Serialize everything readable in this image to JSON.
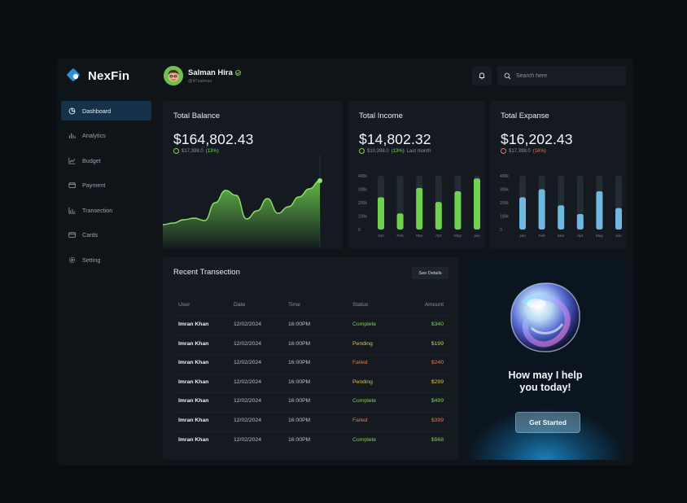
{
  "brand": {
    "name": "NexFin"
  },
  "sidebar": {
    "items": [
      {
        "label": "Dashboard",
        "icon": "pie-chart-icon",
        "active": true
      },
      {
        "label": "Analytics",
        "icon": "bar-chart-icon"
      },
      {
        "label": "Budget",
        "icon": "line-chart-icon"
      },
      {
        "label": "Payment",
        "icon": "wallet-icon"
      },
      {
        "label": "Transection",
        "icon": "transaction-chart-icon"
      },
      {
        "label": "Cards",
        "icon": "card-icon"
      },
      {
        "label": "Setting",
        "icon": "gear-icon"
      }
    ]
  },
  "header": {
    "user_name": "Salman Hira",
    "user_handle": "@47salman",
    "search_placeholder": "Search here"
  },
  "balance": {
    "title": "Total Balance",
    "amount": "$164,802.43",
    "change_value": "$17,398.0",
    "change_pct": "(13%)"
  },
  "income": {
    "title": "Total Income",
    "amount": "$14,802.32",
    "change_value": "$10,398.0",
    "change_pct": "(13%)",
    "change_suffix": "Last month"
  },
  "expense": {
    "title": "Total Expanse",
    "amount": "$16,202.43",
    "change_value": "$17,398.0",
    "change_pct": "(16%)"
  },
  "chart_data": [
    {
      "type": "area",
      "name": "balance-trend",
      "values": [
        28,
        30,
        34,
        36,
        33,
        55,
        70,
        64,
        35,
        45,
        60,
        42,
        50,
        62,
        72,
        82
      ],
      "ylim": [
        0,
        100
      ],
      "color": "#6fd24e"
    },
    {
      "type": "bar",
      "name": "income",
      "categories": [
        "Jan",
        "Feb",
        "Mar",
        "Apr",
        "May",
        "Jun"
      ],
      "yticks": [
        "400k",
        "300k",
        "200k",
        "100k",
        "0"
      ],
      "ylim": [
        0,
        400
      ],
      "values": [
        240,
        120,
        310,
        205,
        285,
        380
      ],
      "color": "#6fd24e",
      "track_color": "#232b33"
    },
    {
      "type": "bar",
      "name": "expense",
      "categories": [
        "Jan",
        "Feb",
        "Mar",
        "Apr",
        "May",
        "Jun"
      ],
      "yticks": [
        "400k",
        "300k",
        "200k",
        "100k",
        "0"
      ],
      "ylim": [
        0,
        400
      ],
      "values": [
        240,
        300,
        180,
        115,
        285,
        160
      ],
      "color": "#6fb8e0",
      "track_color": "#232b33"
    }
  ],
  "transactions": {
    "title": "Recent Transection",
    "see_details": "See Details",
    "columns": [
      "User",
      "Date",
      "Time",
      "Status",
      "Amount"
    ],
    "rows": [
      {
        "user": "Imran Khan",
        "date": "12/02/2024",
        "time": "16:00PM",
        "status": "Complete",
        "amount": "$340"
      },
      {
        "user": "Imran Khan",
        "date": "12/02/2024",
        "time": "16:00PM",
        "status": "Pending",
        "amount": "$199"
      },
      {
        "user": "Imran Khan",
        "date": "12/02/2024",
        "time": "16:00PM",
        "status": "Failed",
        "amount": "$240"
      },
      {
        "user": "Imran Khan",
        "date": "12/02/2024",
        "time": "16:00PM",
        "status": "Pending",
        "amount": "$299"
      },
      {
        "user": "Imran Khan",
        "date": "12/02/2024",
        "time": "16:00PM",
        "status": "Complete",
        "amount": "$499"
      },
      {
        "user": "Imran Khan",
        "date": "12/02/2024",
        "time": "16:00PM",
        "status": "Failed",
        "amount": "$399"
      },
      {
        "user": "Imran Khan",
        "date": "12/02/2024",
        "time": "16:00PM",
        "status": "Complete",
        "amount": "$568"
      }
    ]
  },
  "assistant": {
    "line1": "How may I help",
    "line2": "you today!",
    "cta": "Get Started"
  },
  "colors": {
    "accent_green": "#6fd24e",
    "accent_blue": "#6fb8e0",
    "active_nav": "#15324a",
    "status_complete": "#7fd25a",
    "status_pending": "#d9c35a",
    "status_failed": "#e07b5a"
  }
}
